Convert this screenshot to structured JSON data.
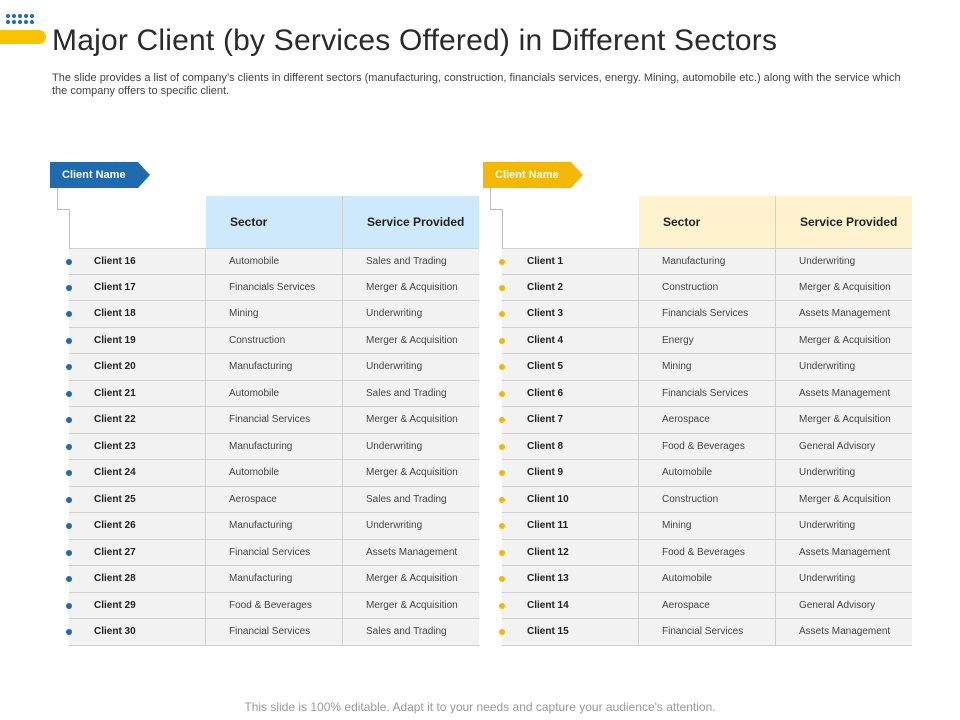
{
  "header": {
    "title": "Major Client (by Services Offered) in Different Sectors",
    "subtitle": "The slide provides a list of company’s clients in different sectors (manufacturing, construction, financials services, energy. Mining, automobile etc.) along with the service which the company offers to specific client."
  },
  "colors": {
    "blue": "#1e6bb0",
    "yellow": "#f5b800",
    "light_blue": "#cde9fb",
    "light_yellow": "#fff3cf"
  },
  "left_table": {
    "tag_label": "Client Name",
    "columns": [
      "Sector",
      "Service Provided"
    ],
    "rows": [
      {
        "client": "Client 16",
        "sector": "Automobile",
        "service": "Sales and Trading"
      },
      {
        "client": "Client 17",
        "sector": "Financials Services",
        "service": "Merger & Acquisition"
      },
      {
        "client": "Client 18",
        "sector": "Mining",
        "service": "Underwriting"
      },
      {
        "client": "Client 19",
        "sector": "Construction",
        "service": "Merger & Acquisition"
      },
      {
        "client": "Client 20",
        "sector": "Manufacturing",
        "service": "Underwriting"
      },
      {
        "client": "Client 21",
        "sector": "Automobile",
        "service": "Sales and Trading"
      },
      {
        "client": "Client 22",
        "sector": "Financial Services",
        "service": "Merger & Acquisition"
      },
      {
        "client": "Client 23",
        "sector": "Manufacturing",
        "service": "Underwriting"
      },
      {
        "client": "Client 24",
        "sector": "Automobile",
        "service": "Merger & Acquisition"
      },
      {
        "client": "Client 25",
        "sector": "Aerospace",
        "service": "Sales and Trading"
      },
      {
        "client": "Client 26",
        "sector": "Manufacturing",
        "service": "Underwriting"
      },
      {
        "client": "Client 27",
        "sector": "Financial Services",
        "service": "Assets Management"
      },
      {
        "client": "Client 28",
        "sector": "Manufacturing",
        "service": "Merger & Acquisition"
      },
      {
        "client": "Client 29",
        "sector": "Food & Beverages",
        "service": "Merger & Acquisition"
      },
      {
        "client": "Client 30",
        "sector": "Financial Services",
        "service": "Sales and Trading"
      }
    ]
  },
  "right_table": {
    "tag_label": "Client Name",
    "columns": [
      "Sector",
      "Service Provided"
    ],
    "rows": [
      {
        "client": "Client 1",
        "sector": "Manufacturing",
        "service": "Underwriting"
      },
      {
        "client": "Client 2",
        "sector": "Construction",
        "service": "Merger & Acquisition"
      },
      {
        "client": "Client 3",
        "sector": "Financials Services",
        "service": "Assets Management"
      },
      {
        "client": "Client 4",
        "sector": "Energy",
        "service": "Merger & Acquisition"
      },
      {
        "client": "Client 5",
        "sector": "Mining",
        "service": "Underwriting"
      },
      {
        "client": "Client 6",
        "sector": "Financials Services",
        "service": "Assets Management"
      },
      {
        "client": "Client 7",
        "sector": "Aerospace",
        "service": "Merger & Acquisition"
      },
      {
        "client": "Client 8",
        "sector": "Food & Beverages",
        "service": "General Advisory"
      },
      {
        "client": "Client 9",
        "sector": "Automobile",
        "service": "Underwriting"
      },
      {
        "client": "Client 10",
        "sector": "Construction",
        "service": "Merger & Acquisition"
      },
      {
        "client": "Client 11",
        "sector": "Mining",
        "service": "Underwriting"
      },
      {
        "client": "Client 12",
        "sector": "Food & Beverages",
        "service": "Assets Management"
      },
      {
        "client": "Client 13",
        "sector": "Automobile",
        "service": "Underwriting"
      },
      {
        "client": "Client 14",
        "sector": "Aerospace",
        "service": "General Advisory"
      },
      {
        "client": "Client 15",
        "sector": "Financial Services",
        "service": "Assets Management"
      }
    ]
  },
  "footer": {
    "text": "This slide is 100% editable. Adapt it to your needs and capture your audience's attention."
  }
}
